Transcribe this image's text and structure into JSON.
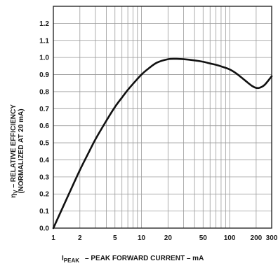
{
  "chart_data": {
    "type": "line",
    "xscale": "log",
    "x_ticks": [
      1,
      2,
      5,
      10,
      20,
      50,
      100,
      200,
      300
    ],
    "x_tick_labels": [
      "1",
      "2",
      "5",
      "10",
      "20",
      "50",
      "100",
      "200",
      "300"
    ],
    "xlim": [
      1,
      300
    ],
    "y_ticks": [
      0.0,
      0.1,
      0.2,
      0.3,
      0.4,
      0.5,
      0.6,
      0.7,
      0.8,
      0.9,
      1.0,
      1.1,
      1.2
    ],
    "y_tick_labels": [
      "0.0",
      "0.1",
      "0.2",
      "0.3",
      "0.4",
      "0.5",
      "0.6",
      "0.7",
      "0.8",
      "0.9",
      "1.0",
      "1.1",
      "1.2"
    ],
    "ylim": [
      0,
      1.3
    ],
    "grid": true,
    "xlabel": {
      "symbol": "I",
      "subscript": "PEAK",
      "text": "– PEAK FORWARD CURRENT – mA"
    },
    "ylabel": {
      "symbol": "η",
      "subscript": "V",
      "line1": "– RELATIVE EFFICIENCY",
      "line2": "(NORMALIZED AT 20 mA)"
    },
    "series": [
      {
        "color": "#111111",
        "x": [
          1,
          1.2,
          1.5,
          2,
          2.5,
          3,
          4,
          5,
          6,
          7,
          8,
          10,
          12,
          15,
          20,
          25,
          30,
          40,
          50,
          60,
          70,
          80,
          100,
          120,
          150,
          180,
          200,
          220,
          250,
          300
        ],
        "y": [
          0.0,
          0.09,
          0.2,
          0.34,
          0.44,
          0.52,
          0.63,
          0.71,
          0.765,
          0.81,
          0.845,
          0.9,
          0.935,
          0.97,
          0.99,
          0.992,
          0.99,
          0.983,
          0.975,
          0.965,
          0.957,
          0.948,
          0.93,
          0.905,
          0.865,
          0.833,
          0.822,
          0.823,
          0.84,
          0.89
        ]
      }
    ]
  }
}
